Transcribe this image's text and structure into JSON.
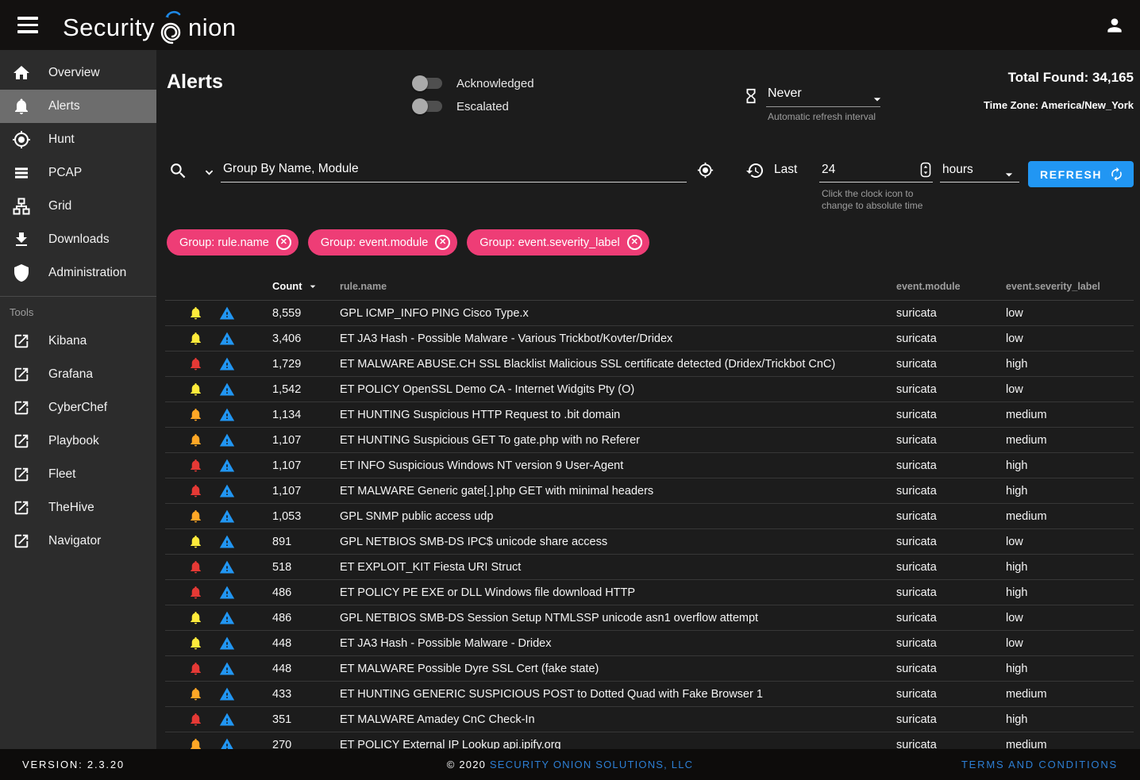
{
  "topbar": {
    "logo_part1": "Security",
    "logo_part2": "nion"
  },
  "sidebar": {
    "items": [
      {
        "label": "Overview",
        "icon": "home",
        "active": false
      },
      {
        "label": "Alerts",
        "icon": "bell",
        "active": true
      },
      {
        "label": "Hunt",
        "icon": "crosshairs",
        "active": false
      },
      {
        "label": "PCAP",
        "icon": "list",
        "active": false
      },
      {
        "label": "Grid",
        "icon": "sitemap",
        "active": false
      },
      {
        "label": "Downloads",
        "icon": "download",
        "active": false
      },
      {
        "label": "Administration",
        "icon": "shield",
        "active": false
      }
    ],
    "tools_label": "Tools",
    "tools": [
      {
        "label": "Kibana",
        "icon": "external-link"
      },
      {
        "label": "Grafana",
        "icon": "external-link"
      },
      {
        "label": "CyberChef",
        "icon": "external-link"
      },
      {
        "label": "Playbook",
        "icon": "external-link"
      },
      {
        "label": "Fleet",
        "icon": "external-link"
      },
      {
        "label": "TheHive",
        "icon": "external-link"
      },
      {
        "label": "Navigator",
        "icon": "external-link"
      }
    ]
  },
  "header": {
    "title": "Alerts",
    "toggles": [
      {
        "label": "Acknowledged",
        "on": false
      },
      {
        "label": "Escalated",
        "on": false
      }
    ],
    "refresh_interval": {
      "value": "Never",
      "helper": "Automatic refresh interval"
    },
    "total_found": "Total Found: 34,165",
    "timezone": "Time Zone: America/New_York"
  },
  "search": {
    "value": "Group By Name, Module"
  },
  "timerange": {
    "prefix": "Last",
    "value": "24",
    "unit": "hours",
    "helper_line1": "Click the clock icon to",
    "helper_line2": "change to absolute time",
    "refresh_label": "REFRESH"
  },
  "filters": {
    "chips": [
      "Group: rule.name",
      "Group: event.module",
      "Group: event.severity_label"
    ]
  },
  "table": {
    "columns": [
      "Count",
      "rule.name",
      "event.module",
      "event.severity_label"
    ],
    "sort_column": "Count",
    "sort_direction": "desc",
    "rows": [
      {
        "count": "8,559",
        "rule_name": "GPL ICMP_INFO PING Cisco Type.x",
        "module": "suricata",
        "severity": "low"
      },
      {
        "count": "3,406",
        "rule_name": "ET JA3 Hash - Possible Malware - Various Trickbot/Kovter/Dridex",
        "module": "suricata",
        "severity": "low"
      },
      {
        "count": "1,729",
        "rule_name": "ET MALWARE ABUSE.CH SSL Blacklist Malicious SSL certificate detected (Dridex/Trickbot CnC)",
        "module": "suricata",
        "severity": "high"
      },
      {
        "count": "1,542",
        "rule_name": "ET POLICY OpenSSL Demo CA - Internet Widgits Pty (O)",
        "module": "suricata",
        "severity": "low"
      },
      {
        "count": "1,134",
        "rule_name": "ET HUNTING Suspicious HTTP Request to .bit domain",
        "module": "suricata",
        "severity": "medium"
      },
      {
        "count": "1,107",
        "rule_name": "ET HUNTING Suspicious GET To gate.php with no Referer",
        "module": "suricata",
        "severity": "medium"
      },
      {
        "count": "1,107",
        "rule_name": "ET INFO Suspicious Windows NT version 9 User-Agent",
        "module": "suricata",
        "severity": "high"
      },
      {
        "count": "1,107",
        "rule_name": "ET MALWARE Generic gate[.].php GET with minimal headers",
        "module": "suricata",
        "severity": "high"
      },
      {
        "count": "1,053",
        "rule_name": "GPL SNMP public access udp",
        "module": "suricata",
        "severity": "medium"
      },
      {
        "count": "891",
        "rule_name": "GPL NETBIOS SMB-DS IPC$ unicode share access",
        "module": "suricata",
        "severity": "low"
      },
      {
        "count": "518",
        "rule_name": "ET EXPLOIT_KIT Fiesta URI Struct",
        "module": "suricata",
        "severity": "high"
      },
      {
        "count": "486",
        "rule_name": "ET POLICY PE EXE or DLL Windows file download HTTP",
        "module": "suricata",
        "severity": "high"
      },
      {
        "count": "486",
        "rule_name": "GPL NETBIOS SMB-DS Session Setup NTMLSSP unicode asn1 overflow attempt",
        "module": "suricata",
        "severity": "low"
      },
      {
        "count": "448",
        "rule_name": "ET JA3 Hash - Possible Malware - Dridex",
        "module": "suricata",
        "severity": "low"
      },
      {
        "count": "448",
        "rule_name": "ET MALWARE Possible Dyre SSL Cert (fake state)",
        "module": "suricata",
        "severity": "high"
      },
      {
        "count": "433",
        "rule_name": "ET HUNTING GENERIC SUSPICIOUS POST to Dotted Quad with Fake Browser 1",
        "module": "suricata",
        "severity": "medium"
      },
      {
        "count": "351",
        "rule_name": "ET MALWARE Amadey CnC Check-In",
        "module": "suricata",
        "severity": "high"
      },
      {
        "count": "270",
        "rule_name": "ET POLICY External IP Lookup api.ipify.org",
        "module": "suricata",
        "severity": "medium"
      }
    ]
  },
  "footer": {
    "version": "VERSION: 2.3.20",
    "copyright_prefix": "© 2020 ",
    "copyright_link": "SECURITY ONION SOLUTIONS, LLC",
    "terms": "TERMS AND CONDITIONS"
  },
  "colors": {
    "severity_low": "#FFEB3B",
    "severity_medium": "#FFA726",
    "severity_high": "#E53935",
    "info_blue": "#2196F3",
    "chip_pink": "#EE3D76",
    "accent_blue": "#2196F3"
  }
}
